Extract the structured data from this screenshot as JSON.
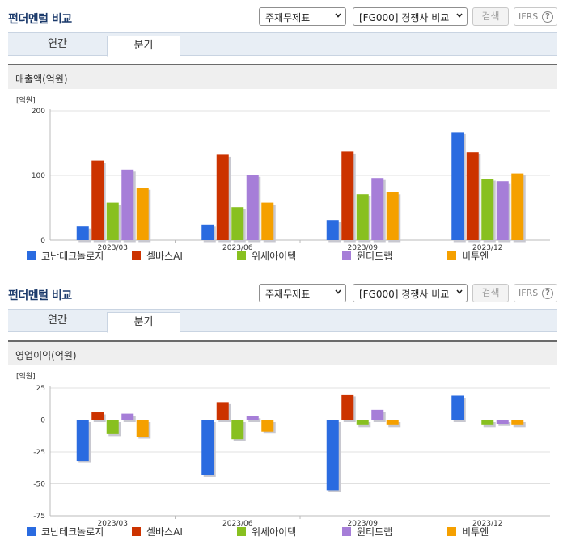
{
  "sections": [
    {
      "title": "펀더멘털 비교",
      "statement_select": "주재무제표",
      "compare_select": "[FG000] 경쟁사 비교",
      "search_label": "검색",
      "ifrs_label": "IFRS",
      "help_glyph": "?",
      "tabs": [
        "연간",
        "분기"
      ],
      "active_tab": 1,
      "subtitle": "매출액(억원)"
    },
    {
      "title": "펀더멘털 비교",
      "statement_select": "주재무제표",
      "compare_select": "[FG000] 경쟁사 비교",
      "search_label": "검색",
      "ifrs_label": "IFRS",
      "help_glyph": "?",
      "tabs": [
        "연간",
        "분기"
      ],
      "active_tab": 1,
      "subtitle": "영업이익(억원)"
    }
  ],
  "colors": {
    "series": [
      "#2a6be0",
      "#cc3300",
      "#88c020",
      "#a67ed8",
      "#f5a000"
    ],
    "grid": "#e0e0e0",
    "axis": "#bbbbbb",
    "title": "#1b3a6b"
  },
  "chart_data": [
    {
      "type": "bar",
      "unit_label": "[억원]",
      "categories": [
        "2023/03",
        "2023/06",
        "2023/09",
        "2023/12"
      ],
      "yticks": [
        0,
        100,
        200
      ],
      "ylim": [
        0,
        200
      ],
      "grid": true,
      "legend_position": "bottom",
      "series": [
        {
          "name": "코난테크놀로지",
          "values": [
            21,
            24,
            31,
            167
          ]
        },
        {
          "name": "셀바스AI",
          "values": [
            123,
            132,
            137,
            136
          ]
        },
        {
          "name": "위세아이텍",
          "values": [
            58,
            51,
            71,
            95
          ]
        },
        {
          "name": "윈티드랩",
          "values": [
            109,
            101,
            96,
            91
          ]
        },
        {
          "name": "비투엔",
          "values": [
            81,
            58,
            74,
            103
          ]
        }
      ]
    },
    {
      "type": "bar",
      "unit_label": "[억원]",
      "categories": [
        "2023/03",
        "2023/06",
        "2023/09",
        "2023/12"
      ],
      "yticks": [
        25,
        0,
        -25,
        -50,
        -75
      ],
      "ylim": [
        -75,
        25
      ],
      "grid": true,
      "legend_position": "bottom",
      "series": [
        {
          "name": "코난테크놀로지",
          "values": [
            -32,
            -43,
            -55,
            19
          ]
        },
        {
          "name": "셀바스AI",
          "values": [
            6,
            14,
            20,
            0
          ]
        },
        {
          "name": "위세아이텍",
          "values": [
            -11,
            -15,
            -4,
            -4
          ]
        },
        {
          "name": "윈티드랩",
          "values": [
            5,
            3,
            8,
            -3
          ]
        },
        {
          "name": "비투엔",
          "values": [
            -13,
            -9,
            -4,
            -4
          ]
        }
      ]
    }
  ]
}
